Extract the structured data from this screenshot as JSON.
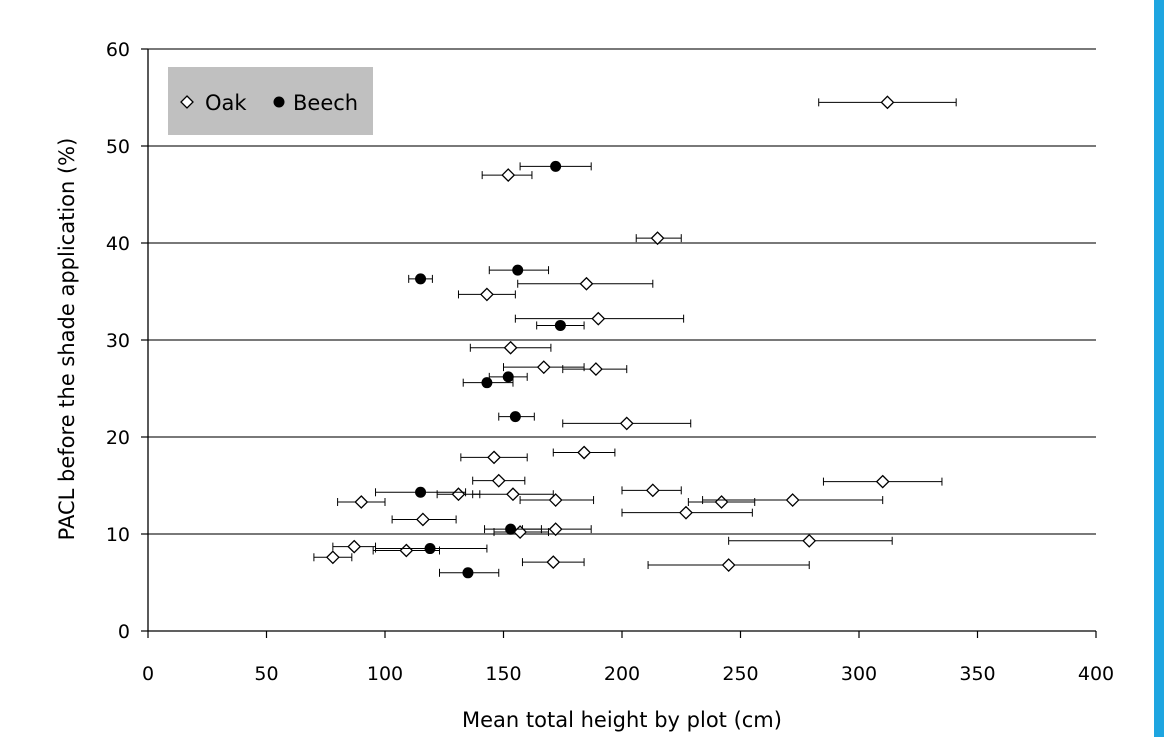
{
  "chart_data": {
    "type": "scatter",
    "title": "",
    "xlabel": "Mean total height by plot (cm)",
    "ylabel": "PACL before the shade application (%)",
    "xlim": [
      0,
      400
    ],
    "ylim": [
      0,
      60
    ],
    "xticks": [
      0,
      50,
      100,
      150,
      200,
      250,
      300,
      350,
      400
    ],
    "yticks": [
      0,
      10,
      20,
      30,
      40,
      50,
      60
    ],
    "grid": "horizontal",
    "legend_position": "top-left",
    "series": [
      {
        "name": "Oak",
        "marker": "open-diamond",
        "points": [
          {
            "x": 312,
            "y": 54.5,
            "xerr_low": 283,
            "xerr_high": 341
          },
          {
            "x": 152,
            "y": 47.0,
            "xerr_low": 141,
            "xerr_high": 162
          },
          {
            "x": 215,
            "y": 40.5,
            "xerr_low": 206,
            "xerr_high": 225
          },
          {
            "x": 185,
            "y": 35.8,
            "xerr_low": 156,
            "xerr_high": 213
          },
          {
            "x": 143,
            "y": 34.7,
            "xerr_low": 131,
            "xerr_high": 155
          },
          {
            "x": 190,
            "y": 32.2,
            "xerr_low": 155,
            "xerr_high": 226
          },
          {
            "x": 153,
            "y": 29.2,
            "xerr_low": 136,
            "xerr_high": 170
          },
          {
            "x": 167,
            "y": 27.2,
            "xerr_low": 150,
            "xerr_high": 184
          },
          {
            "x": 189,
            "y": 27.0,
            "xerr_low": 175,
            "xerr_high": 202
          },
          {
            "x": 202,
            "y": 21.4,
            "xerr_low": 175,
            "xerr_high": 229
          },
          {
            "x": 146,
            "y": 17.9,
            "xerr_low": 132,
            "xerr_high": 160
          },
          {
            "x": 184,
            "y": 18.4,
            "xerr_low": 171,
            "xerr_high": 197
          },
          {
            "x": 148,
            "y": 15.5,
            "xerr_low": 137,
            "xerr_high": 159
          },
          {
            "x": 310,
            "y": 15.4,
            "xerr_low": 285,
            "xerr_high": 335
          },
          {
            "x": 213,
            "y": 14.5,
            "xerr_low": 200,
            "xerr_high": 225
          },
          {
            "x": 131,
            "y": 14.1,
            "xerr_low": 122,
            "xerr_high": 140
          },
          {
            "x": 154,
            "y": 14.1,
            "xerr_low": 137,
            "xerr_high": 171
          },
          {
            "x": 90,
            "y": 13.3,
            "xerr_low": 80,
            "xerr_high": 100
          },
          {
            "x": 172,
            "y": 13.5,
            "xerr_low": 157,
            "xerr_high": 188
          },
          {
            "x": 242,
            "y": 13.3,
            "xerr_low": 228,
            "xerr_high": 256
          },
          {
            "x": 272,
            "y": 13.5,
            "xerr_low": 234,
            "xerr_high": 310
          },
          {
            "x": 227,
            "y": 12.2,
            "xerr_low": 200,
            "xerr_high": 255
          },
          {
            "x": 116,
            "y": 11.5,
            "xerr_low": 103,
            "xerr_high": 130
          },
          {
            "x": 172,
            "y": 10.5,
            "xerr_low": 158,
            "xerr_high": 187
          },
          {
            "x": 157,
            "y": 10.2,
            "xerr_low": 146,
            "xerr_high": 169
          },
          {
            "x": 279,
            "y": 9.3,
            "xerr_low": 245,
            "xerr_high": 314
          },
          {
            "x": 87,
            "y": 8.7,
            "xerr_low": 78,
            "xerr_high": 96
          },
          {
            "x": 109,
            "y": 8.3,
            "xerr_low": 95,
            "xerr_high": 123
          },
          {
            "x": 78,
            "y": 7.6,
            "xerr_low": 70,
            "xerr_high": 86
          },
          {
            "x": 171,
            "y": 7.1,
            "xerr_low": 158,
            "xerr_high": 184
          },
          {
            "x": 245,
            "y": 6.8,
            "xerr_low": 211,
            "xerr_high": 279
          }
        ]
      },
      {
        "name": "Beech",
        "marker": "filled-circle",
        "points": [
          {
            "x": 172,
            "y": 47.9,
            "xerr_low": 157,
            "xerr_high": 187
          },
          {
            "x": 156,
            "y": 37.2,
            "xerr_low": 144,
            "xerr_high": 169
          },
          {
            "x": 115,
            "y": 36.3,
            "xerr_low": 110,
            "xerr_high": 120
          },
          {
            "x": 174,
            "y": 31.5,
            "xerr_low": 164,
            "xerr_high": 184
          },
          {
            "x": 152,
            "y": 26.2,
            "xerr_low": 144,
            "xerr_high": 160
          },
          {
            "x": 143,
            "y": 25.6,
            "xerr_low": 133,
            "xerr_high": 154
          },
          {
            "x": 155,
            "y": 22.1,
            "xerr_low": 148,
            "xerr_high": 163
          },
          {
            "x": 115,
            "y": 14.3,
            "xerr_low": 96,
            "xerr_high": 134
          },
          {
            "x": 153,
            "y": 10.5,
            "xerr_low": 142,
            "xerr_high": 166
          },
          {
            "x": 119,
            "y": 8.5,
            "xerr_low": 96,
            "xerr_high": 143
          },
          {
            "x": 135,
            "y": 6.0,
            "xerr_low": 123,
            "xerr_high": 148
          }
        ]
      }
    ]
  },
  "colors": {
    "grid": "#4d4d4d",
    "legend_background": "#c0c0c0",
    "right_border": "#1ea5e0",
    "marker": "#000000"
  }
}
